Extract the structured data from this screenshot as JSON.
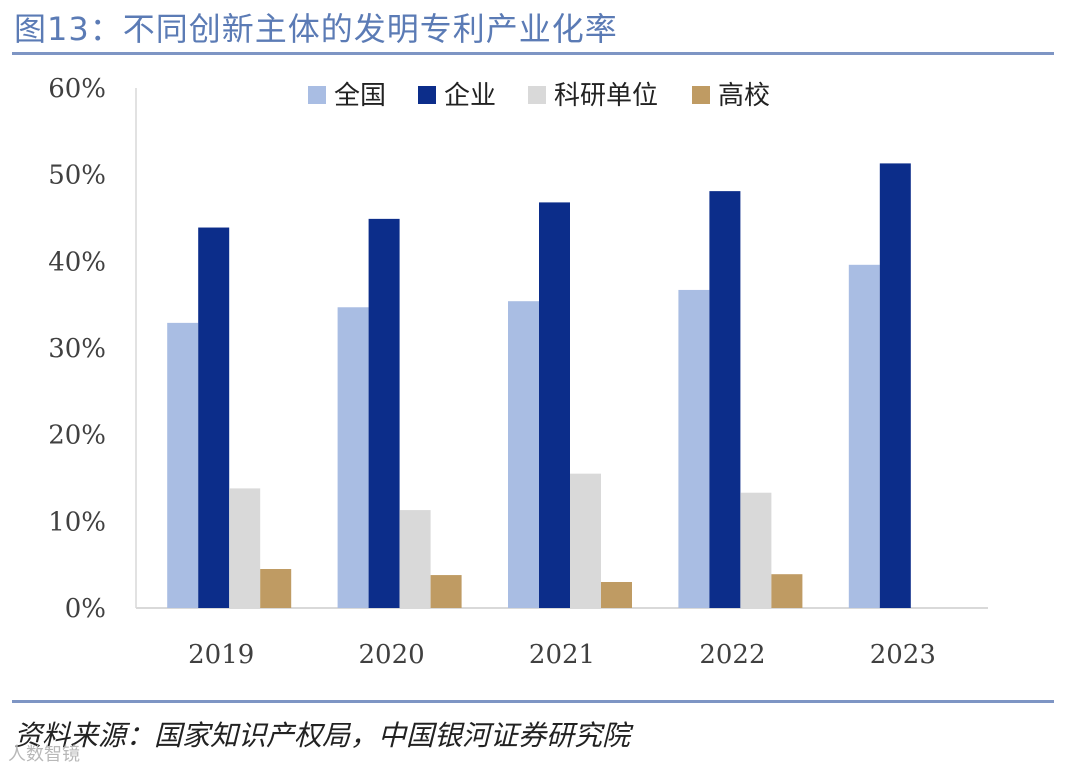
{
  "title": "图13：不同创新主体的发明专利产业化率",
  "source": "资料来源：国家知识产权局，中国银河证券研究院",
  "watermark": "人数智镜",
  "colors": {
    "accent": "#5b7bb5",
    "rule": "#7e95c4",
    "national": "#a9bde3",
    "enterprise": "#0c2d8a",
    "research": "#d9d9d9",
    "university": "#bf9b63"
  },
  "chart_data": {
    "type": "bar",
    "title": "不同创新主体的发明专利产业化率",
    "categories": [
      "2019",
      "2020",
      "2021",
      "2022",
      "2023"
    ],
    "series": [
      {
        "name": "全国",
        "color": "#a9bde3",
        "values": [
          32.9,
          34.7,
          35.4,
          36.7,
          39.6
        ]
      },
      {
        "name": "企业",
        "color": "#0c2d8a",
        "values": [
          43.9,
          44.9,
          46.8,
          48.1,
          51.3
        ]
      },
      {
        "name": "科研单位",
        "color": "#d9d9d9",
        "values": [
          13.8,
          11.3,
          15.5,
          13.3,
          null
        ]
      },
      {
        "name": "高校",
        "color": "#bf9b63",
        "values": [
          4.5,
          3.8,
          3.0,
          3.9,
          null
        ]
      }
    ],
    "yticks": [
      "0%",
      "10%",
      "20%",
      "30%",
      "40%",
      "50%",
      "60%"
    ],
    "ylim": [
      0,
      60
    ],
    "xlabel": "",
    "ylabel": "",
    "legend_position": "top"
  }
}
